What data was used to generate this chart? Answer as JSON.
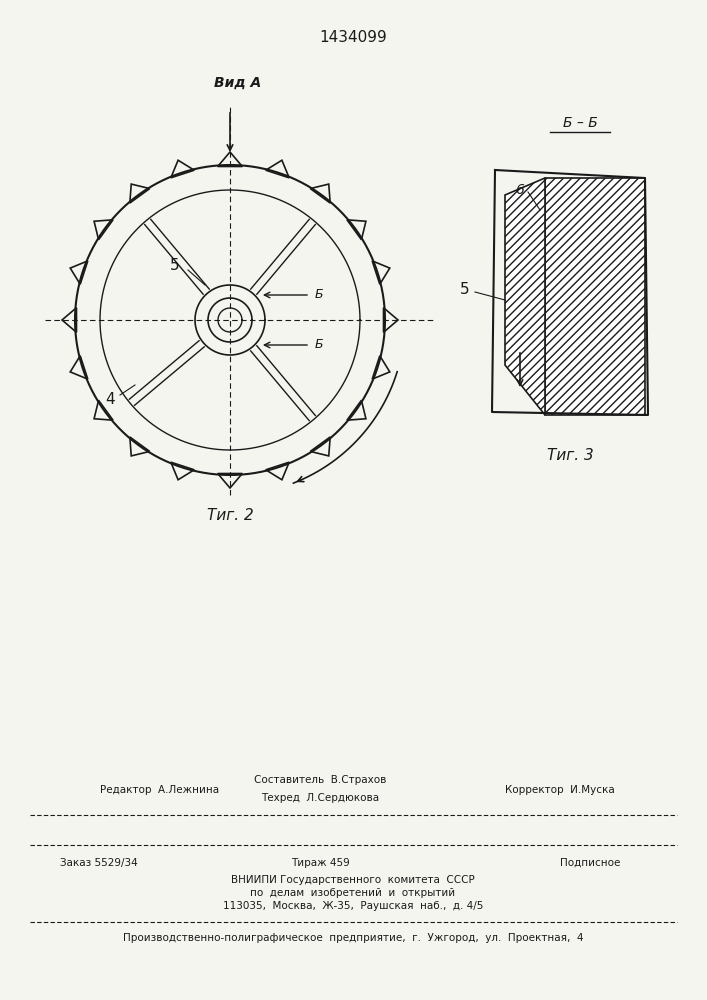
{
  "patent_number": "1434099",
  "fig2_label": "Τиг. 2",
  "fig3_label": "Τиг. 3",
  "vida_label": "Вид A",
  "bb_label": "Б – Б",
  "label_4": "4",
  "label_5_fig2": "5",
  "label_5_fig3": "5",
  "label_6": "6",
  "label_b1": "Б",
  "label_b2": "Б",
  "editor_line": "Редактор  А.Лежнина",
  "composer_line1": "Составитель  В.Страхов",
  "composer_line2": "Техред  Л.Сердюкова",
  "corrector_line": "Корректор  И.Муска",
  "order_line": "Заказ 5529/34",
  "tirage_line": "Тираж 459",
  "podpisnoe_line": "Подписное",
  "vnipi_line1": "ВНИИПИ Государственного  комитета  СССР",
  "vnipi_line2": "по  делам  изобретений  и  открытий",
  "vnipi_line3": "113035,  Москва,  Ж-35,  Раушская  наб.,  д. 4/5",
  "production_line": "Производственно-полиграфическое  предприятие,  г.  Ужгород,  ул.  Проектная,  4",
  "bg_color": "#f5f5f0",
  "line_color": "#1a1a1a"
}
